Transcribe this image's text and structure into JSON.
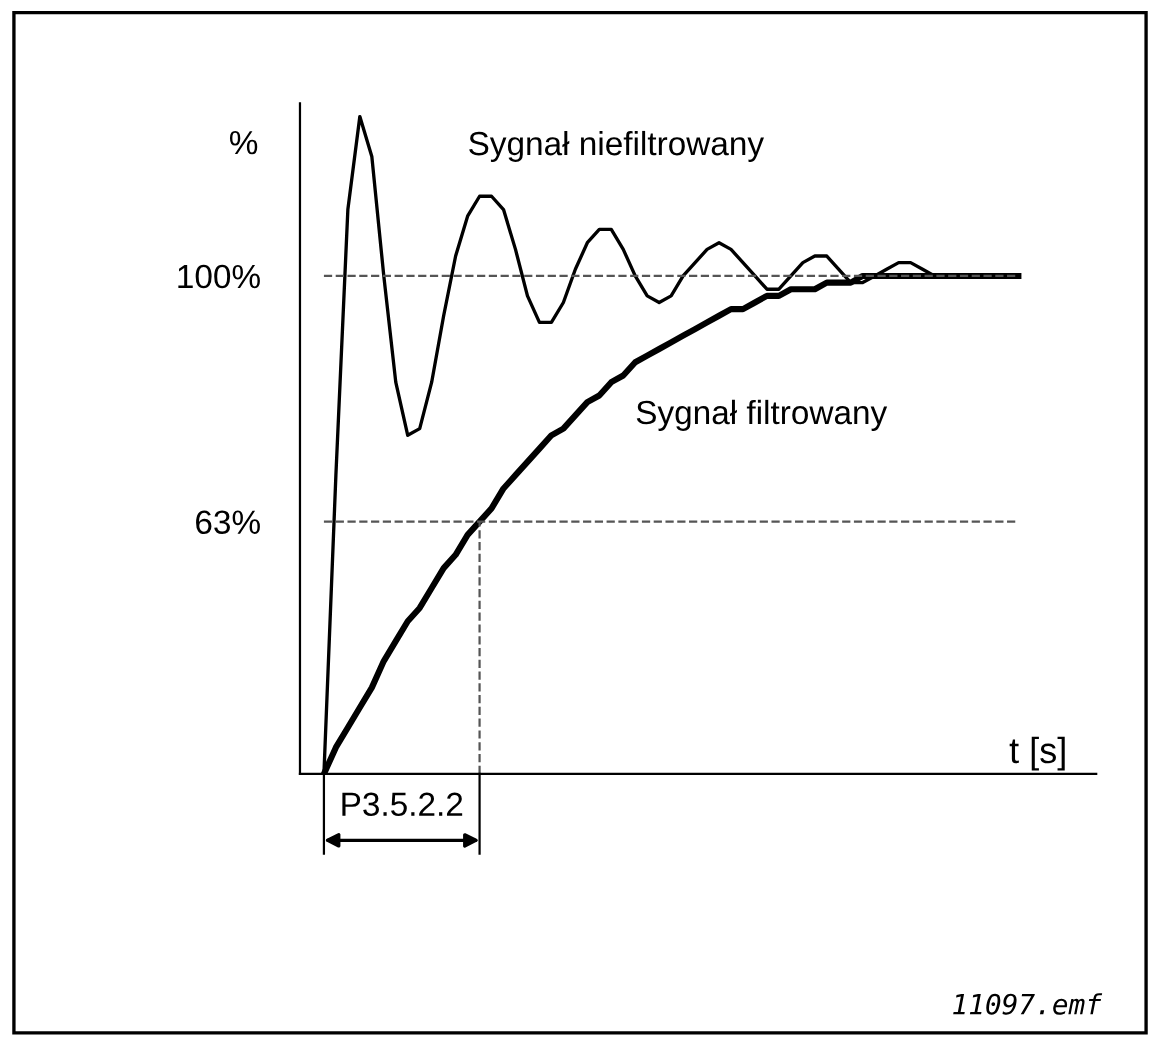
{
  "chart_data": {
    "type": "line",
    "ylabel": "%",
    "xlabel": "t [s]",
    "categories": [
      null,
      null,
      null,
      null,
      null,
      null,
      null,
      null,
      null,
      null,
      null,
      null,
      null,
      null,
      null,
      null,
      null,
      null,
      null,
      null,
      null,
      null,
      null,
      null,
      null,
      null,
      null,
      null,
      null,
      null,
      null,
      null,
      null,
      null,
      null,
      null,
      null,
      null,
      null,
      null,
      null,
      null,
      null,
      null,
      null,
      null,
      null,
      null,
      null,
      null,
      null,
      null,
      null,
      null,
      null,
      null,
      null,
      null,
      null
    ],
    "series": [
      {
        "color": "#000000",
        "values": [
          25,
          70,
          110,
          124,
          118,
          100,
          84,
          76,
          77,
          84,
          94,
          103,
          109,
          112,
          112,
          110,
          104,
          97,
          93,
          93,
          96,
          101,
          105,
          107,
          107,
          104,
          100,
          97,
          96,
          97,
          100,
          102,
          104,
          105,
          104,
          102,
          100,
          98,
          98,
          100,
          102,
          103,
          103,
          101,
          99,
          99,
          100,
          101,
          102,
          102,
          101,
          100,
          100,
          100,
          100,
          100,
          100,
          100,
          100
        ]
      },
      {
        "color": "#000000",
        "values": [
          25,
          29,
          32,
          35,
          38,
          42,
          45,
          48,
          50,
          53,
          56,
          58,
          61,
          63,
          65,
          68,
          70,
          72,
          74,
          76,
          77,
          79,
          81,
          82,
          84,
          85,
          87,
          88,
          89,
          90,
          91,
          92,
          93,
          94,
          95,
          95,
          96,
          97,
          97,
          98,
          98,
          98,
          99,
          99,
          99,
          100,
          100,
          100,
          100,
          100,
          100,
          100,
          100,
          100,
          100,
          100,
          100,
          100,
          100
        ]
      }
    ],
    "ylim": [
      25,
      126
    ],
    "yticks": [
      {
        "value": 100,
        "label": "100%"
      },
      {
        "value": 63,
        "label": "63%"
      }
    ],
    "tick_labels": "y",
    "ref_lines": [
      {
        "axis": "y",
        "value": 100,
        "line_style": "dashed",
        "color": "#555555"
      },
      {
        "axis": "y",
        "value": 63,
        "line_style": "dashed",
        "color": "#555555"
      }
    ],
    "annotations": [
      "Sygnał niefiltrowany",
      "Sygnał filtrowany",
      "P3.5.2.2",
      "11097.emf"
    ],
    "grid": false,
    "line_style": "solid",
    "marker": "none"
  }
}
